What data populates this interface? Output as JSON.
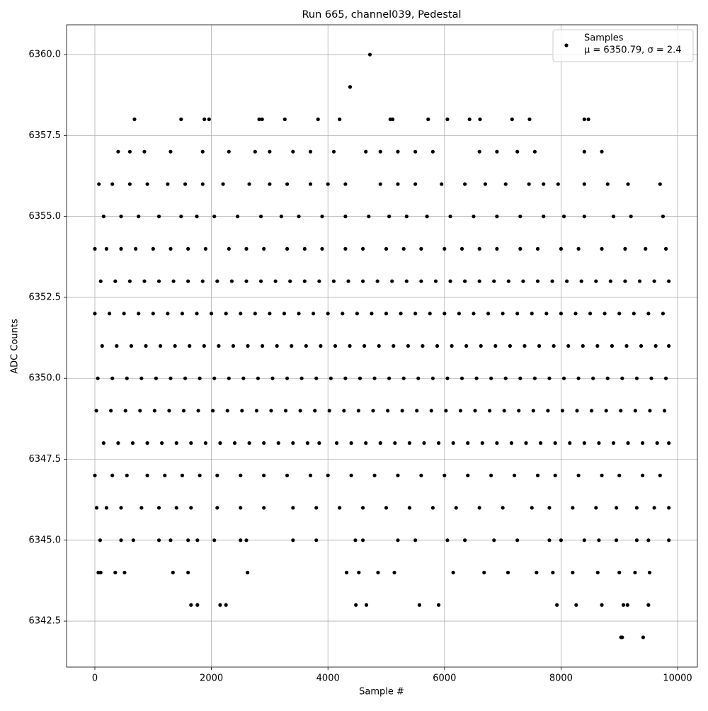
{
  "chart_data": {
    "type": "scatter",
    "title": "Run 665, channel039, Pedestal",
    "xlabel": "Sample #",
    "ylabel": "ADC Counts",
    "legend": {
      "name": "Samples",
      "label": "μ = 6350.79, σ = 2.4",
      "corner": "upper right"
    },
    "color": "#000000",
    "grid": true,
    "xlim": [
      -486,
      10340
    ],
    "xticks": [
      0,
      2000,
      4000,
      6000,
      8000,
      10000
    ],
    "ylim": [
      6341.08,
      6360.92
    ],
    "yticks": [
      6342.5,
      {
        "value": 6345,
        "label": "6345.0"
      },
      6347.5,
      {
        "value": 6350,
        "label": "6350.0"
      },
      6352.5,
      {
        "value": 6355,
        "label": "6355.0"
      },
      6357.5,
      {
        "value": 6360,
        "label": "6360.0"
      }
    ],
    "x": [
      100,
      350,
      600,
      850,
      1100,
      1350,
      1600,
      1850,
      2100,
      2350,
      2600,
      2850,
      3100,
      3350,
      3600,
      3850,
      4100,
      4350,
      4600,
      4850,
      5100,
      5350,
      5600,
      5850,
      6100,
      6350,
      6600,
      6850,
      7100,
      7350,
      7600,
      7850,
      8100,
      8350,
      8600,
      8850,
      9100,
      9350,
      9600,
      9850,
      0,
      250,
      500,
      750,
      1000,
      1250,
      1500,
      1750,
      2000,
      2250,
      2500,
      2750,
      3000,
      3250,
      3500,
      3750,
      4000,
      4250,
      4500,
      4750,
      5000,
      5250,
      5500,
      5750,
      6000,
      6250,
      6500,
      6750,
      7000,
      7250,
      7500,
      7750,
      8000,
      8250,
      8500,
      8750,
      9000,
      9250,
      9500,
      9750,
      125,
      375,
      625,
      875,
      1125,
      1375,
      1625,
      1875,
      2125,
      2375,
      2625,
      2875,
      3125,
      3375,
      3625,
      3875,
      4125,
      4375,
      4625,
      4875,
      5125,
      5375,
      5625,
      5875,
      6125,
      6375,
      6625,
      6875,
      7125,
      7375,
      7625,
      7875,
      8125,
      8375,
      8625,
      8875,
      9125,
      9375,
      9625,
      9850,
      50,
      300,
      550,
      800,
      1050,
      1300,
      1550,
      1800,
      2050,
      2300,
      2550,
      2800,
      3050,
      3300,
      3550,
      3800,
      4050,
      4300,
      4550,
      4800,
      5050,
      5300,
      5550,
      5800,
      6050,
      6300,
      6550,
      6800,
      7050,
      7300,
      7550,
      7800,
      8050,
      8300,
      8550,
      8800,
      9050,
      9300,
      9550,
      9800,
      25,
      275,
      525,
      775,
      1025,
      1275,
      1525,
      1775,
      2025,
      2275,
      2525,
      2775,
      3025,
      3275,
      3525,
      3775,
      4025,
      4275,
      4525,
      4775,
      5025,
      5275,
      5525,
      5775,
      6025,
      6275,
      6525,
      6775,
      7025,
      7275,
      7525,
      7775,
      8025,
      8275,
      8525,
      8775,
      9025,
      9275,
      9525,
      9775,
      150,
      400,
      650,
      900,
      1150,
      1400,
      1650,
      1900,
      2150,
      2400,
      2650,
      2900,
      3150,
      3400,
      3650,
      3850,
      4150,
      4400,
      4650,
      4900,
      5150,
      5400,
      5650,
      5900,
      6150,
      6400,
      6650,
      6900,
      7150,
      7400,
      7650,
      7900,
      8150,
      8400,
      8650,
      8900,
      9150,
      9400,
      9650,
      9850,
      0,
      200,
      450,
      700,
      1000,
      1300,
      1600,
      1900,
      2300,
      2600,
      2900,
      3300,
      3600,
      3900,
      4300,
      4600,
      5000,
      5300,
      5600,
      6000,
      6300,
      6600,
      6900,
      7300,
      7600,
      8000,
      8300,
      8700,
      9100,
      9450,
      9800,
      0,
      300,
      550,
      900,
      1200,
      1500,
      1800,
      2100,
      2500,
      2900,
      3300,
      3700,
      4000,
      4400,
      4800,
      5200,
      5600,
      6000,
      6400,
      6800,
      7200,
      7600,
      7900,
      8300,
      8700,
      9000,
      9400,
      9700,
      150,
      450,
      750,
      1100,
      1480,
      1750,
      2050,
      2450,
      2850,
      3200,
      3500,
      3900,
      4300,
      4700,
      5050,
      5350,
      5700,
      6100,
      6500,
      6900,
      7300,
      7700,
      8050,
      8400,
      8900,
      9200,
      9750,
      30,
      200,
      450,
      800,
      1100,
      1400,
      1650,
      2100,
      2500,
      2900,
      3400,
      3800,
      4200,
      4600,
      5000,
      5400,
      5800,
      6200,
      6600,
      7000,
      7500,
      7800,
      8200,
      8600,
      8950,
      9300,
      9600,
      9850,
      70,
      300,
      600,
      900,
      1250,
      1550,
      1850,
      2200,
      2650,
      3000,
      3300,
      3700,
      4000,
      4300,
      4900,
      5200,
      5500,
      5950,
      6350,
      6700,
      7050,
      7450,
      7700,
      7950,
      8400,
      8800,
      9150,
      9700,
      90,
      450,
      660,
      1100,
      1300,
      1600,
      1760,
      2050,
      2500,
      2600,
      3400,
      3800,
      4470,
      4600,
      5200,
      5500,
      6050,
      6350,
      6850,
      7250,
      7800,
      8000,
      8400,
      8650,
      8950,
      9300,
      9500,
      9850,
      400,
      600,
      850,
      1300,
      1850,
      2300,
      2750,
      3000,
      3400,
      3700,
      4100,
      4650,
      4900,
      5200,
      5500,
      5800,
      6600,
      6900,
      7250,
      7550,
      8400,
      8700,
      60,
      100,
      350,
      510,
      1340,
      1600,
      2620,
      4320,
      4530,
      4860,
      5140,
      6150,
      6680,
      7090,
      7580,
      7860,
      8200,
      8630,
      9000,
      9270,
      9520,
      1650,
      1760,
      2150,
      2250,
      4480,
      4660,
      5570,
      5900,
      7930,
      8260,
      8700,
      9070,
      9140,
      9500,
      680,
      1480,
      1880,
      1960,
      2820,
      2870,
      3260,
      3830,
      4200,
      5070,
      5110,
      5720,
      6050,
      6430,
      6610,
      7160,
      7460,
      8400,
      8470,
      4380,
      4720,
      9030,
      9050,
      9410
    ],
    "values": [
      6353,
      6353,
      6353,
      6353,
      6353,
      6353,
      6353,
      6353,
      6353,
      6353,
      6353,
      6353,
      6353,
      6353,
      6353,
      6353,
      6353,
      6353,
      6353,
      6353,
      6353,
      6353,
      6353,
      6353,
      6353,
      6353,
      6353,
      6353,
      6353,
      6353,
      6353,
      6353,
      6353,
      6353,
      6353,
      6353,
      6353,
      6353,
      6353,
      6353,
      6352,
      6352,
      6352,
      6352,
      6352,
      6352,
      6352,
      6352,
      6352,
      6352,
      6352,
      6352,
      6352,
      6352,
      6352,
      6352,
      6352,
      6352,
      6352,
      6352,
      6352,
      6352,
      6352,
      6352,
      6352,
      6352,
      6352,
      6352,
      6352,
      6352,
      6352,
      6352,
      6352,
      6352,
      6352,
      6352,
      6352,
      6352,
      6352,
      6352,
      6351,
      6351,
      6351,
      6351,
      6351,
      6351,
      6351,
      6351,
      6351,
      6351,
      6351,
      6351,
      6351,
      6351,
      6351,
      6351,
      6351,
      6351,
      6351,
      6351,
      6351,
      6351,
      6351,
      6351,
      6351,
      6351,
      6351,
      6351,
      6351,
      6351,
      6351,
      6351,
      6351,
      6351,
      6351,
      6351,
      6351,
      6351,
      6351,
      6351,
      6350,
      6350,
      6350,
      6350,
      6350,
      6350,
      6350,
      6350,
      6350,
      6350,
      6350,
      6350,
      6350,
      6350,
      6350,
      6350,
      6350,
      6350,
      6350,
      6350,
      6350,
      6350,
      6350,
      6350,
      6350,
      6350,
      6350,
      6350,
      6350,
      6350,
      6350,
      6350,
      6350,
      6350,
      6350,
      6350,
      6350,
      6350,
      6350,
      6350,
      6349,
      6349,
      6349,
      6349,
      6349,
      6349,
      6349,
      6349,
      6349,
      6349,
      6349,
      6349,
      6349,
      6349,
      6349,
      6349,
      6349,
      6349,
      6349,
      6349,
      6349,
      6349,
      6349,
      6349,
      6349,
      6349,
      6349,
      6349,
      6349,
      6349,
      6349,
      6349,
      6349,
      6349,
      6349,
      6349,
      6349,
      6349,
      6349,
      6349,
      6348,
      6348,
      6348,
      6348,
      6348,
      6348,
      6348,
      6348,
      6348,
      6348,
      6348,
      6348,
      6348,
      6348,
      6348,
      6348,
      6348,
      6348,
      6348,
      6348,
      6348,
      6348,
      6348,
      6348,
      6348,
      6348,
      6348,
      6348,
      6348,
      6348,
      6348,
      6348,
      6348,
      6348,
      6348,
      6348,
      6348,
      6348,
      6348,
      6348,
      6354,
      6354,
      6354,
      6354,
      6354,
      6354,
      6354,
      6354,
      6354,
      6354,
      6354,
      6354,
      6354,
      6354,
      6354,
      6354,
      6354,
      6354,
      6354,
      6354,
      6354,
      6354,
      6354,
      6354,
      6354,
      6354,
      6354,
      6354,
      6354,
      6354,
      6354,
      6347,
      6347,
      6347,
      6347,
      6347,
      6347,
      6347,
      6347,
      6347,
      6347,
      6347,
      6347,
      6347,
      6347,
      6347,
      6347,
      6347,
      6347,
      6347,
      6347,
      6347,
      6347,
      6347,
      6347,
      6347,
      6347,
      6347,
      6347,
      6355,
      6355,
      6355,
      6355,
      6355,
      6355,
      6355,
      6355,
      6355,
      6355,
      6355,
      6355,
      6355,
      6355,
      6355,
      6355,
      6355,
      6355,
      6355,
      6355,
      6355,
      6355,
      6355,
      6355,
      6355,
      6355,
      6355,
      6346,
      6346,
      6346,
      6346,
      6346,
      6346,
      6346,
      6346,
      6346,
      6346,
      6346,
      6346,
      6346,
      6346,
      6346,
      6346,
      6346,
      6346,
      6346,
      6346,
      6346,
      6346,
      6346,
      6346,
      6346,
      6346,
      6346,
      6346,
      6356,
      6356,
      6356,
      6356,
      6356,
      6356,
      6356,
      6356,
      6356,
      6356,
      6356,
      6356,
      6356,
      6356,
      6356,
      6356,
      6356,
      6356,
      6356,
      6356,
      6356,
      6356,
      6356,
      6356,
      6356,
      6356,
      6356,
      6356,
      6345,
      6345,
      6345,
      6345,
      6345,
      6345,
      6345,
      6345,
      6345,
      6345,
      6345,
      6345,
      6345,
      6345,
      6345,
      6345,
      6345,
      6345,
      6345,
      6345,
      6345,
      6345,
      6345,
      6345,
      6345,
      6345,
      6345,
      6345,
      6357,
      6357,
      6357,
      6357,
      6357,
      6357,
      6357,
      6357,
      6357,
      6357,
      6357,
      6357,
      6357,
      6357,
      6357,
      6357,
      6357,
      6357,
      6357,
      6357,
      6357,
      6357,
      6344,
      6344,
      6344,
      6344,
      6344,
      6344,
      6344,
      6344,
      6344,
      6344,
      6344,
      6344,
      6344,
      6344,
      6344,
      6344,
      6344,
      6344,
      6344,
      6344,
      6344,
      6343,
      6343,
      6343,
      6343,
      6343,
      6343,
      6343,
      6343,
      6343,
      6343,
      6343,
      6343,
      6343,
      6343,
      6358,
      6358,
      6358,
      6358,
      6358,
      6358,
      6358,
      6358,
      6358,
      6358,
      6358,
      6358,
      6358,
      6358,
      6358,
      6358,
      6358,
      6358,
      6358,
      6359,
      6360,
      6342,
      6342,
      6342
    ]
  }
}
